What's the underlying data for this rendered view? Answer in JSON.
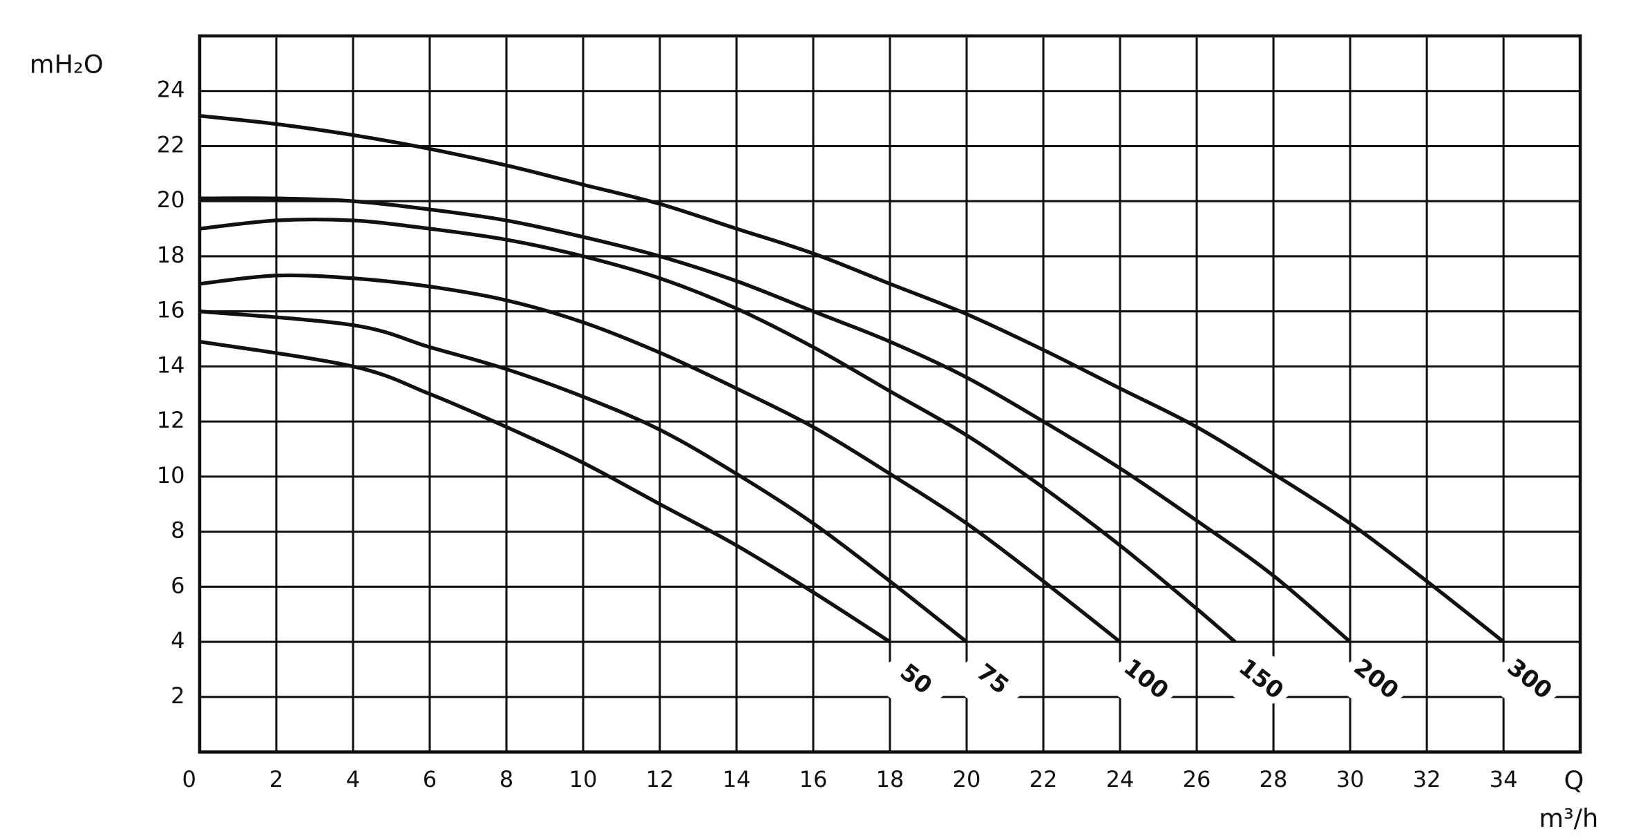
{
  "chart_data": {
    "type": "line",
    "y_label": "mH₂O",
    "x_label": "Q",
    "x_unit": "m³/h",
    "xlim": [
      0,
      36
    ],
    "ylim": [
      0,
      26
    ],
    "xticks": [
      0,
      2,
      4,
      6,
      8,
      10,
      12,
      14,
      16,
      18,
      20,
      22,
      24,
      26,
      28,
      30,
      32,
      34
    ],
    "yticks": [
      2,
      4,
      6,
      8,
      10,
      12,
      14,
      16,
      18,
      20,
      22,
      24
    ],
    "grid": true,
    "series": [
      {
        "name": "50",
        "color": "#111111",
        "x": [
          0,
          4,
          6,
          8,
          10,
          12,
          14,
          16,
          18
        ],
        "values": [
          14.9,
          14,
          13,
          11.8,
          10.5,
          9,
          7.5,
          5.8,
          4
        ]
      },
      {
        "name": "75",
        "color": "#111111",
        "x": [
          0,
          4,
          6,
          8,
          10,
          12,
          14,
          16,
          18,
          20
        ],
        "values": [
          16,
          15.5,
          14.7,
          13.9,
          12.9,
          11.7,
          10.1,
          8.3,
          6.2,
          4
        ]
      },
      {
        "name": "100",
        "color": "#111111",
        "x": [
          0,
          2,
          4,
          6,
          8,
          10,
          12,
          14,
          16,
          18,
          20,
          22,
          24
        ],
        "values": [
          17,
          17.3,
          17.2,
          16.9,
          16.4,
          15.6,
          14.5,
          13.2,
          11.8,
          10.1,
          8.3,
          6.2,
          4
        ]
      },
      {
        "name": "150",
        "color": "#111111",
        "x": [
          0,
          2,
          4,
          6,
          8,
          10,
          12,
          14,
          16,
          18,
          20,
          22,
          24,
          26,
          27
        ],
        "values": [
          19,
          19.3,
          19.3,
          19,
          18.6,
          18,
          17.2,
          16.1,
          14.7,
          13.1,
          11.5,
          9.6,
          7.5,
          5.2,
          4
        ]
      },
      {
        "name": "200",
        "color": "#111111",
        "x": [
          0,
          2,
          4,
          6,
          8,
          10,
          12,
          14,
          16,
          18,
          20,
          22,
          24,
          26,
          28,
          30
        ],
        "values": [
          20.1,
          20.1,
          20,
          19.7,
          19.3,
          18.7,
          18,
          17.1,
          16,
          14.9,
          13.6,
          12,
          10.3,
          8.4,
          6.4,
          4
        ]
      },
      {
        "name": "300",
        "color": "#111111",
        "x": [
          0,
          2,
          4,
          6,
          8,
          10,
          12,
          14,
          16,
          18,
          20,
          22,
          24,
          26,
          28,
          30,
          32,
          34
        ],
        "values": [
          23.1,
          22.8,
          22.4,
          21.9,
          21.3,
          20.6,
          19.9,
          19,
          18.1,
          17,
          15.9,
          14.6,
          13.2,
          11.8,
          10.1,
          8.3,
          6.2,
          4
        ]
      }
    ]
  }
}
